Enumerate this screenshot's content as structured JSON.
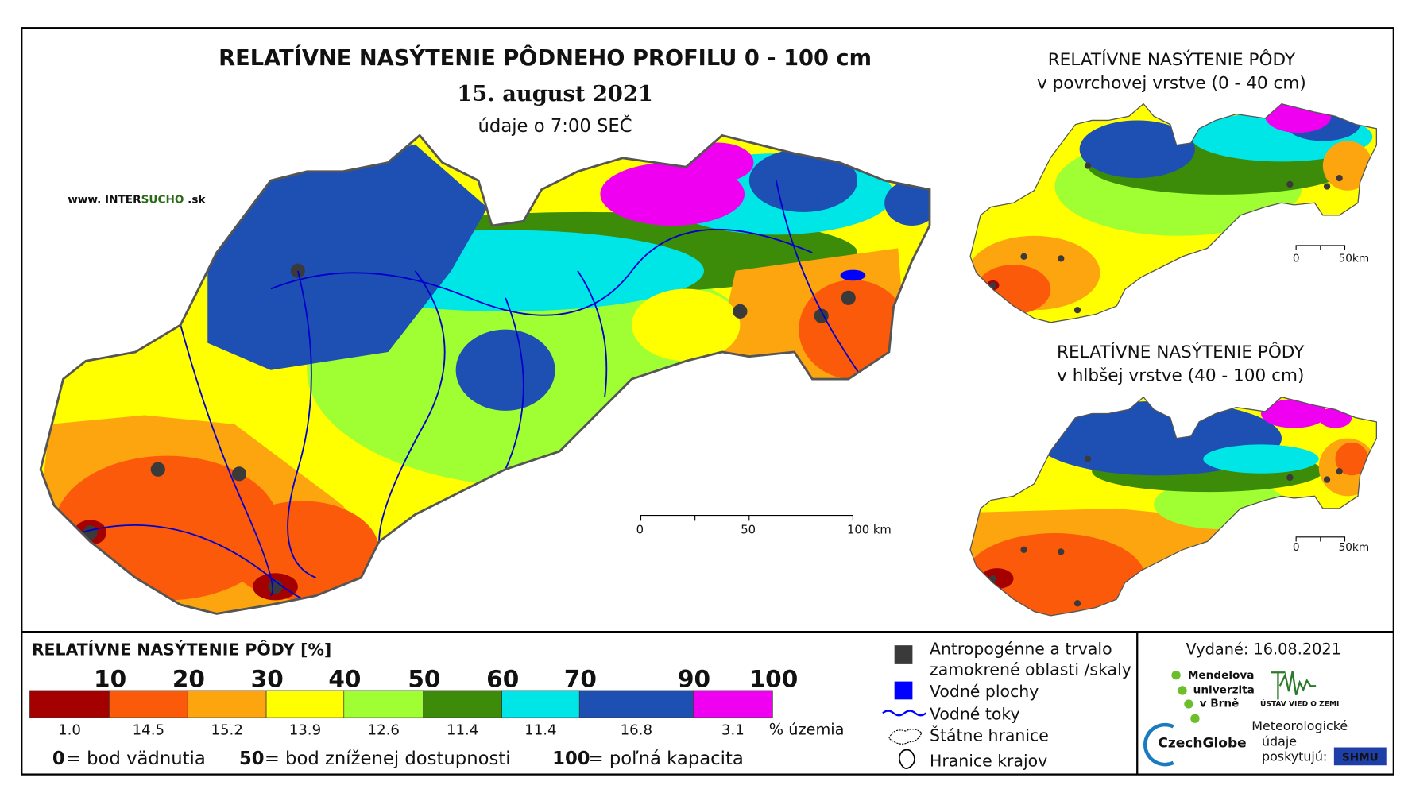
{
  "header": {
    "title": "RELATÍVNE NASÝTENIE PÔDNEHO PROFILU 0 - 100 cm",
    "date": "15. august 2021",
    "time_note": "údaje o 7:00 SEČ",
    "website": {
      "prefix": "www. INTER",
      "highlight": "SUCHO",
      "suffix": " .sk"
    }
  },
  "main_map": {
    "scale_labels": [
      "0",
      "50",
      "100 km"
    ]
  },
  "inset_top": {
    "title_lines": [
      "RELATÍVNE NASÝTENIE PÔDY",
      "v povrchovej vrstve (0 - 40 cm)"
    ],
    "scale_labels": [
      "0",
      "50km"
    ]
  },
  "inset_bottom": {
    "title_lines": [
      "RELATÍVNE NASÝTENIE PÔDY",
      "v hlbšej vrstve (40 - 100 cm)"
    ],
    "scale_labels": [
      "0",
      "50km"
    ]
  },
  "legend": {
    "title": "RELATÍVNE NASÝTENIE PÔDY [%]",
    "boundaries": [
      "10",
      "20",
      "30",
      "40",
      "50",
      "60",
      "70",
      "90",
      "100"
    ],
    "classes": [
      {
        "color": "#a50000",
        "area": "1.0"
      },
      {
        "color": "#fa5a0a",
        "area": "14.5"
      },
      {
        "color": "#fda50f",
        "area": "15.2"
      },
      {
        "color": "#ffff00",
        "area": "13.9"
      },
      {
        "color": "#a0ff32",
        "area": "12.6"
      },
      {
        "color": "#3c8c0a",
        "area": "11.4"
      },
      {
        "color": "#00e6e6",
        "area": "11.4"
      },
      {
        "color": "#1e50b4",
        "area": "16.8"
      },
      {
        "color": "#f000f0",
        "area": "3.1"
      }
    ],
    "area_unit": "% územia",
    "notes": [
      {
        "value": "0",
        "text": "= bod vädnutia"
      },
      {
        "value": "50",
        "text": "= bod zníženej dostupnosti"
      },
      {
        "value": "100",
        "text": "= poľná kapacita"
      }
    ]
  },
  "symbols": {
    "items": [
      "Antropogénne a trvalo",
      "zamokrené oblasti /skaly",
      "Vodné plochy",
      "Vodné toky",
      "Štátne hranice",
      "Hranice krajov"
    ]
  },
  "credits": {
    "issued": "Vydané: 16.08.2021",
    "mendel": [
      "Mendelova",
      "univerzita",
      "v Brně"
    ],
    "czechglobe": "CzechGlobe",
    "ustav": "ÚSTAV VIED O ZEMI",
    "meteo": [
      "Meteorologické",
      "údaje",
      "poskytujú:"
    ],
    "shmu": "SHMU"
  }
}
